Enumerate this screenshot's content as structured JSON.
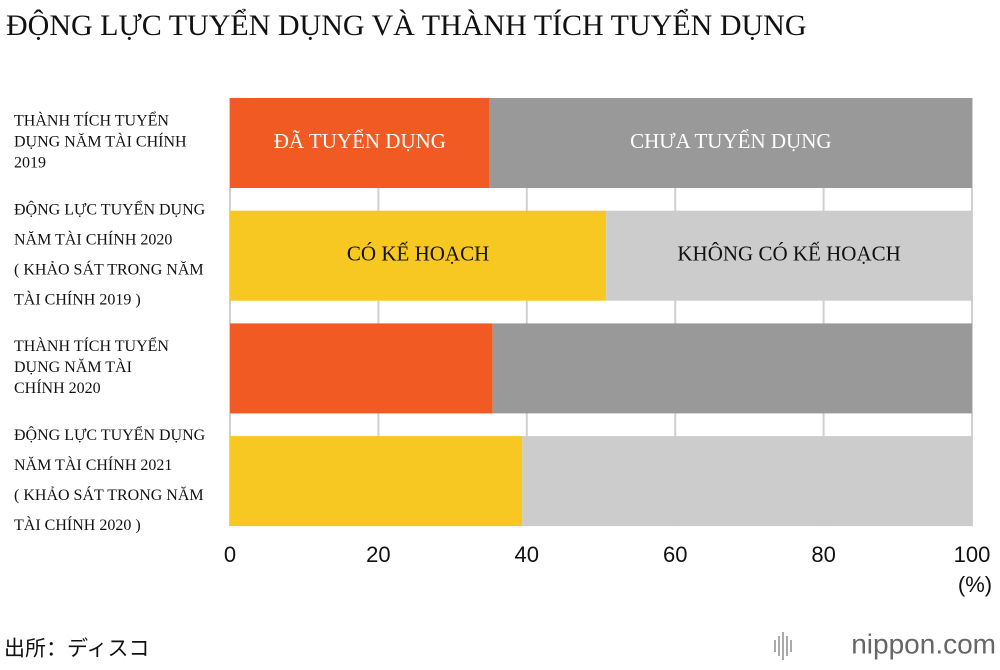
{
  "chart_data": {
    "type": "bar",
    "orientation": "horizontal",
    "stacked": true,
    "title": "ĐỘNG LỰC TUYỂN DỤNG VÀ THÀNH TÍCH TUYỂN DỤNG",
    "bars": [
      {
        "label": [
          "THÀNH TÍCH TUYỂN",
          "DỤNG NĂM TÀI CHÍNH",
          "2019"
        ],
        "segments": [
          {
            "name": "ĐÃ TUYỂN DỤNG",
            "color": "#f15a22",
            "text_color": "#ffffff",
            "value": 35
          },
          {
            "name": "CHƯA TUYỂN DỤNG",
            "color": "#999999",
            "text_color": "#ffffff",
            "value": 65
          }
        ]
      },
      {
        "label": [
          "ĐỘNG LỰC TUYỂN DỤNG",
          "NĂM TÀI CHÍNH 2020",
          "( KHẢO SÁT TRONG NĂM",
          "TÀI CHÍNH 2019 )"
        ],
        "segments": [
          {
            "name": "CÓ KẾ HOẠCH",
            "color": "#f8c822",
            "text_color": "#111111",
            "value": 50.7
          },
          {
            "name": "KHÔNG CÓ KẾ HOẠCH",
            "color": "#cccccc",
            "text_color": "#111111",
            "value": 49.3
          }
        ]
      },
      {
        "label": [
          "THÀNH TÍCH TUYỂN",
          "DỤNG NĂM TÀI",
          "CHÍNH 2020"
        ],
        "segments": [
          {
            "color": "#f15a22",
            "value": 35.4
          },
          {
            "color": "#999999",
            "value": 64.6
          }
        ]
      },
      {
        "label": [
          "ĐỘNG LỰC TUYỂN DỤNG",
          "NĂM TÀI CHÍNH 2021",
          "( KHẢO SÁT TRONG NĂM",
          "TÀI CHÍNH 2020 )"
        ],
        "segments": [
          {
            "color": "#f8c822",
            "value": 39.4
          },
          {
            "color": "#cccccc",
            "value": 60.6
          }
        ]
      }
    ],
    "xlim": [
      0,
      100
    ],
    "xticks": [
      0,
      20,
      40,
      60,
      80,
      100
    ],
    "x_unit": "(%)",
    "grid": true,
    "source": "出所：ディスコ",
    "logo": "nippon.com"
  }
}
